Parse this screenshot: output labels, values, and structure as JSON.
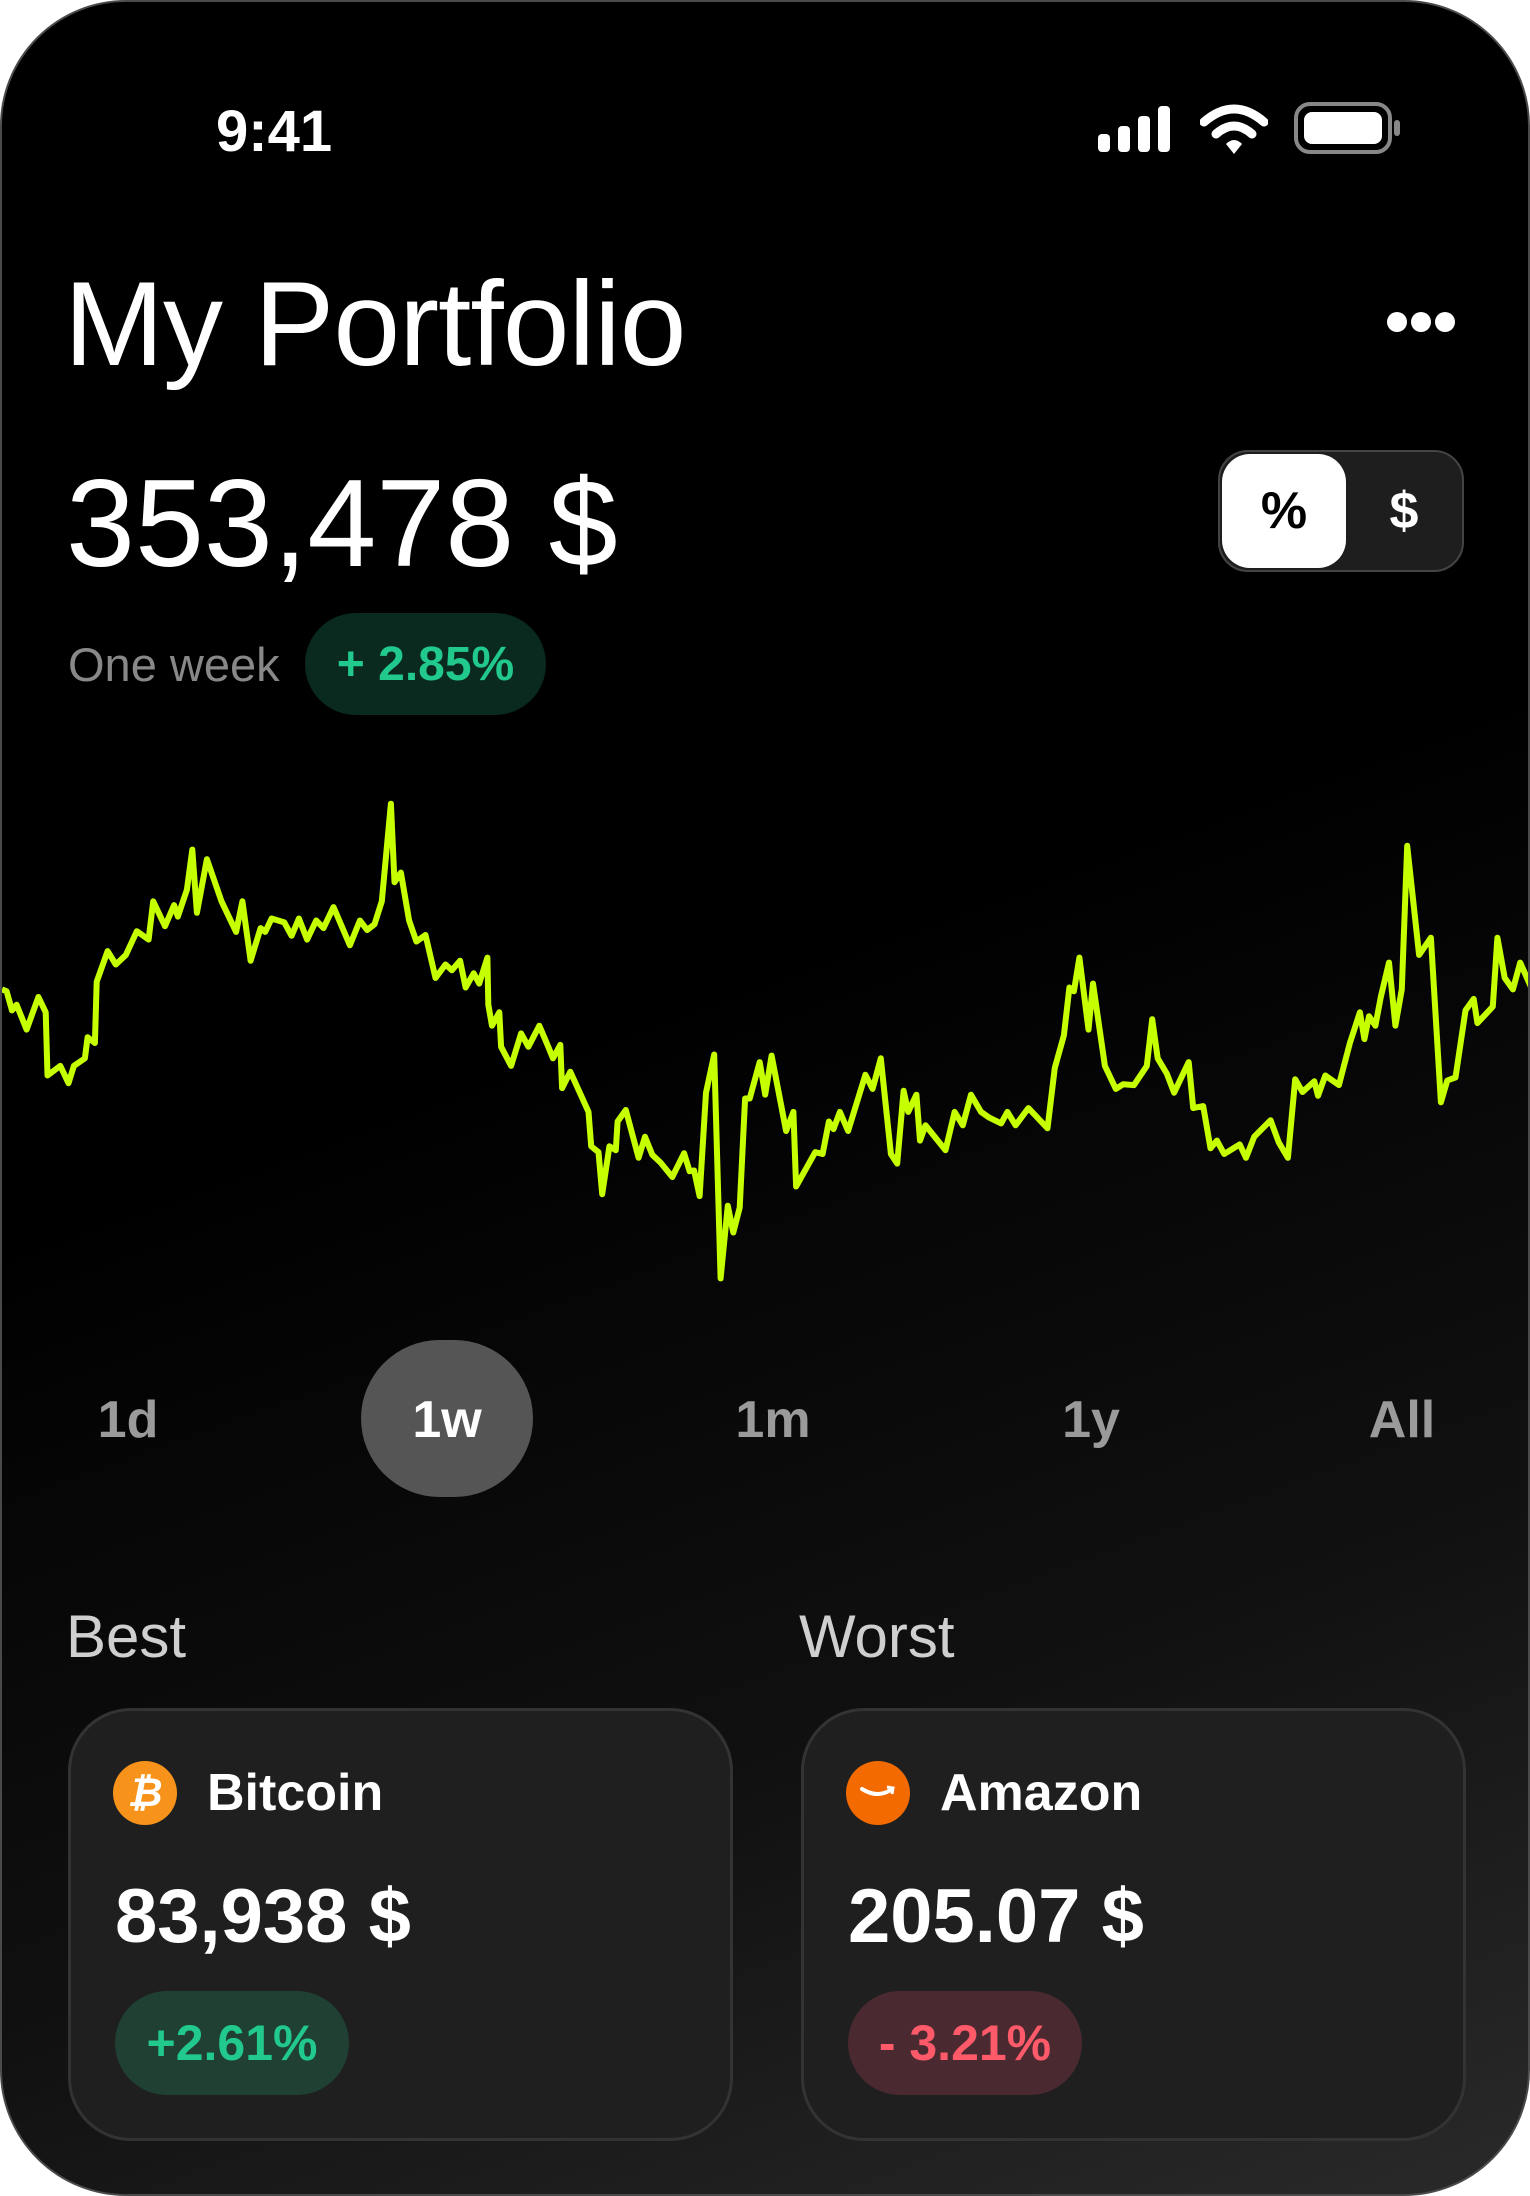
{
  "status_bar": {
    "time": "9:41",
    "icons": [
      "cellular-signal-icon",
      "wifi-icon",
      "battery-icon"
    ]
  },
  "header": {
    "title": "My Portfolio",
    "more_icon": "ellipsis-icon"
  },
  "portfolio": {
    "total": "353,478 $",
    "period_label": "One week",
    "change": "+ 2.85%"
  },
  "unit_toggle": {
    "options": [
      "%",
      "$"
    ],
    "selected": "%"
  },
  "colors": {
    "line": "#c6ff00",
    "positive": "#22c98d",
    "negative": "#ff5a6a",
    "bitcoin": "#f7931a",
    "amazon": "#f26a00"
  },
  "timeframes": {
    "options": [
      "1d",
      "1w",
      "1m",
      "1y",
      "All"
    ],
    "selected": "1w"
  },
  "best": {
    "label": "Best",
    "name": "Bitcoin",
    "price": "83,938 $",
    "change": "+2.61%",
    "icon": "bitcoin-icon"
  },
  "worst": {
    "label": "Worst",
    "name": "Amazon",
    "price": "205.07 $",
    "change": "- 3.21%",
    "icon": "amazon-icon"
  },
  "chart_data": {
    "type": "line",
    "grid": false,
    "xlim": [
      0,
      168
    ],
    "ylim": [
      0,
      140
    ],
    "points": [
      [
        0,
        78
      ],
      [
        0.5,
        77.5
      ],
      [
        1.1,
        72.5
      ],
      [
        1.6,
        74
      ],
      [
        2.7,
        67.5
      ],
      [
        4.0,
        76
      ],
      [
        4.8,
        72
      ],
      [
        5.0,
        55.5
      ],
      [
        6.4,
        58
      ],
      [
        7.3,
        53.5
      ],
      [
        7.9,
        58
      ],
      [
        9.1,
        60
      ],
      [
        9.4,
        65.5
      ],
      [
        10.2,
        64
      ],
      [
        10.4,
        80
      ],
      [
        11.6,
        88
      ],
      [
        12.5,
        84.5
      ],
      [
        13.6,
        87
      ],
      [
        14.8,
        93.2
      ],
      [
        16.1,
        91
      ],
      [
        16.6,
        101
      ],
      [
        17.9,
        94.5
      ],
      [
        18.9,
        100
      ],
      [
        19.3,
        97
      ],
      [
        20.3,
        104
      ],
      [
        20.9,
        114.5
      ],
      [
        21.4,
        98
      ],
      [
        22.5,
        112
      ],
      [
        24.1,
        101
      ],
      [
        25.7,
        93
      ],
      [
        26.4,
        101
      ],
      [
        27.3,
        85.5
      ],
      [
        28.4,
        94
      ],
      [
        28.9,
        93
      ],
      [
        29.6,
        96.5
      ],
      [
        31.0,
        95.5
      ],
      [
        31.8,
        92
      ],
      [
        32.6,
        96.5
      ],
      [
        33.5,
        91
      ],
      [
        34.5,
        96
      ],
      [
        35.3,
        94
      ],
      [
        36.4,
        99.5
      ],
      [
        38.2,
        89.5
      ],
      [
        39.3,
        96
      ],
      [
        40.1,
        93.5
      ],
      [
        40.9,
        95
      ],
      [
        41.7,
        101
      ],
      [
        42.7,
        126.5
      ],
      [
        43.1,
        106
      ],
      [
        43.8,
        108.5
      ],
      [
        44.7,
        96
      ],
      [
        45.5,
        90.5
      ],
      [
        46.5,
        92.2
      ],
      [
        47.6,
        81
      ],
      [
        48.7,
        84.5
      ],
      [
        49.4,
        83
      ],
      [
        50.3,
        85.5
      ],
      [
        50.9,
        78.5
      ],
      [
        51.8,
        82.2
      ],
      [
        52.4,
        79.5
      ],
      [
        53.3,
        86.3
      ],
      [
        53.4,
        74
      ],
      [
        53.8,
        68.5
      ],
      [
        54.6,
        72
      ],
      [
        54.8,
        63
      ],
      [
        55.9,
        58
      ],
      [
        57.0,
        66.5
      ],
      [
        57.8,
        63
      ],
      [
        59.0,
        68.5
      ],
      [
        59.9,
        63.5
      ],
      [
        60.5,
        60
      ],
      [
        61.3,
        63.5
      ],
      [
        61.5,
        52.2
      ],
      [
        62.4,
        56.5
      ],
      [
        64.4,
        46
      ],
      [
        64.7,
        37
      ],
      [
        65.5,
        35.5
      ],
      [
        65.9,
        24.5
      ],
      [
        66.7,
        37
      ],
      [
        67.4,
        36
      ],
      [
        67.6,
        43.5
      ],
      [
        68.5,
        46.5
      ],
      [
        69.9,
        34
      ],
      [
        70.6,
        39.5
      ],
      [
        71.4,
        34.8
      ],
      [
        72.3,
        32.8
      ],
      [
        73.6,
        29
      ],
      [
        74.9,
        35.2
      ],
      [
        75.5,
        30.5
      ],
      [
        76.0,
        30.7
      ],
      [
        76.6,
        24
      ],
      [
        77.3,
        51
      ],
      [
        78.2,
        61
      ],
      [
        78.9,
        2.5
      ],
      [
        79.7,
        21.5
      ],
      [
        80.3,
        14.5
      ],
      [
        81.0,
        21
      ],
      [
        81.6,
        49.5
      ],
      [
        82.1,
        49.5
      ],
      [
        83.2,
        59
      ],
      [
        83.8,
        50.5
      ],
      [
        84.5,
        60.7
      ],
      [
        86.1,
        41
      ],
      [
        86.9,
        46
      ],
      [
        87.2,
        26.5
      ],
      [
        89.3,
        35.5
      ],
      [
        90.1,
        35
      ],
      [
        90.8,
        43.5
      ],
      [
        91.3,
        41.5
      ],
      [
        92.0,
        46
      ],
      [
        92.9,
        41
      ],
      [
        94.8,
        55.7
      ],
      [
        95.6,
        52
      ],
      [
        96.5,
        60
      ],
      [
        97.6,
        35
      ],
      [
        98.3,
        32.5
      ],
      [
        99.0,
        51.5
      ],
      [
        99.5,
        46
      ],
      [
        100.4,
        50.5
      ],
      [
        100.8,
        38.5
      ],
      [
        101.4,
        42.5
      ],
      [
        103.6,
        36
      ],
      [
        104.6,
        46
      ],
      [
        105.5,
        42.5
      ],
      [
        106.4,
        50.5
      ],
      [
        107.5,
        46
      ],
      [
        108.4,
        44.5
      ],
      [
        109.7,
        43
      ],
      [
        110.4,
        46
      ],
      [
        111.3,
        42.5
      ],
      [
        112.7,
        47
      ],
      [
        114.8,
        41.7
      ],
      [
        115.6,
        57.5
      ],
      [
        116.6,
        66
      ],
      [
        117.2,
        78.5
      ],
      [
        117.7,
        77.5
      ],
      [
        118.3,
        86.3
      ],
      [
        119.3,
        67.5
      ],
      [
        119.8,
        79.5
      ],
      [
        121.1,
        58
      ],
      [
        122.3,
        52
      ],
      [
        123.1,
        53.2
      ],
      [
        124.3,
        53
      ],
      [
        125.7,
        58
      ],
      [
        126.3,
        70.2
      ],
      [
        126.9,
        60
      ],
      [
        127.9,
        56
      ],
      [
        128.7,
        51
      ],
      [
        130.3,
        59
      ],
      [
        130.8,
        47
      ],
      [
        131.9,
        47.5
      ],
      [
        132.7,
        36.5
      ],
      [
        133.4,
        38.5
      ],
      [
        134.2,
        35
      ],
      [
        135.9,
        37.5
      ],
      [
        136.6,
        34
      ],
      [
        137.5,
        39.5
      ],
      [
        139.3,
        43.8
      ],
      [
        140.2,
        38
      ],
      [
        141.2,
        34
      ],
      [
        142.0,
        54.5
      ],
      [
        142.8,
        51.2
      ],
      [
        144.1,
        54
      ],
      [
        144.5,
        50.2
      ],
      [
        145.3,
        55.5
      ],
      [
        146.8,
        53
      ],
      [
        148.0,
        64
      ],
      [
        149.1,
        72
      ],
      [
        149.6,
        65
      ],
      [
        150.1,
        71
      ],
      [
        150.8,
        68.5
      ],
      [
        151.4,
        76
      ],
      [
        152.3,
        85
      ],
      [
        153.0,
        68.5
      ],
      [
        153.7,
        78
      ],
      [
        154.3,
        115.5
      ],
      [
        155.6,
        87
      ],
      [
        156.9,
        91.5
      ],
      [
        158.0,
        48.5
      ],
      [
        158.7,
        54.2
      ],
      [
        159.6,
        55
      ],
      [
        160.7,
        72.5
      ],
      [
        161.6,
        75.5
      ],
      [
        162.0,
        69.2
      ],
      [
        163.7,
        73.5
      ],
      [
        164.2,
        91.5
      ],
      [
        165.0,
        81
      ],
      [
        165.9,
        78
      ],
      [
        166.7,
        85
      ],
      [
        168,
        78
      ]
    ]
  }
}
